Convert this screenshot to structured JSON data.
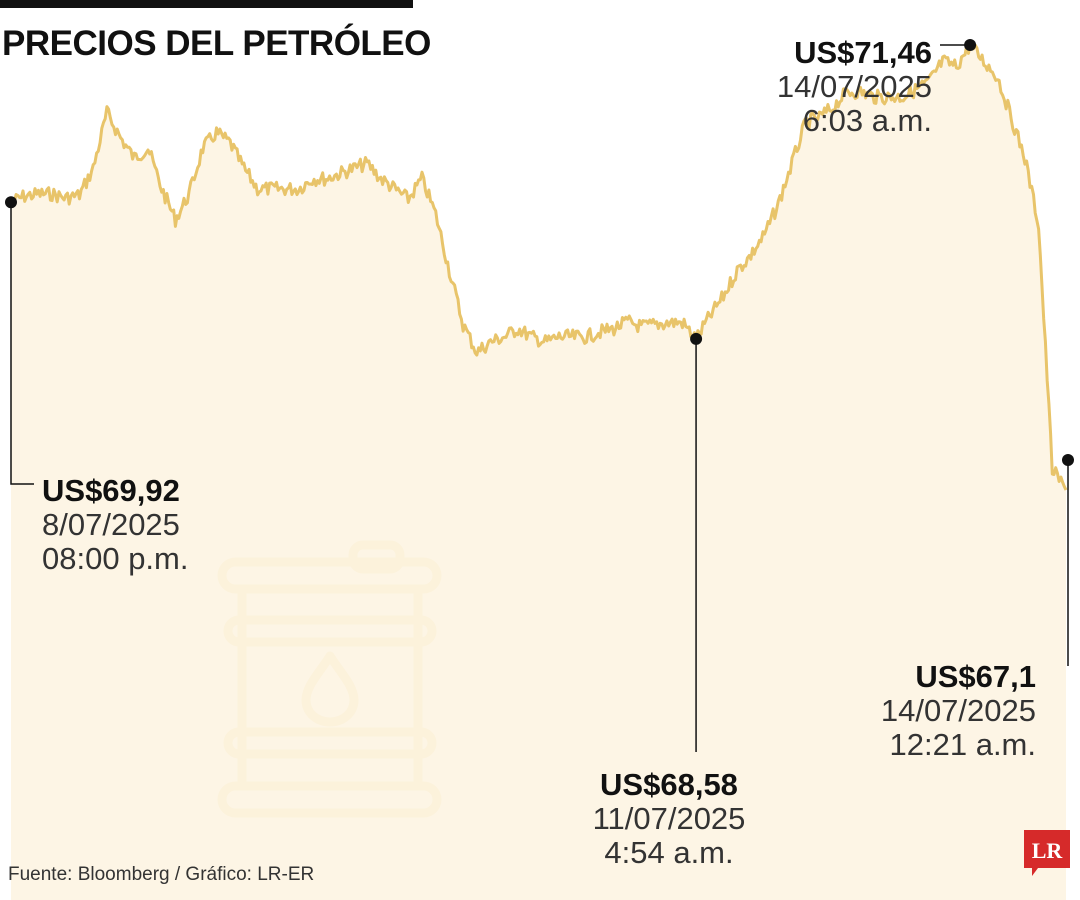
{
  "header": {
    "title": "PRECIOS DEL PETRÓLEO"
  },
  "footer": {
    "source": "Fuente: Bloomberg / Gráfico: LR-ER",
    "logo_text": "LR"
  },
  "colors": {
    "line": "#e8c46a",
    "fill": "#fdf3e0",
    "accent": "#d62a2a",
    "text": "#111111"
  },
  "icons": {
    "background": "oil-barrel-icon"
  },
  "chart_data": {
    "type": "line",
    "unit": "US$",
    "ylim": [
      67.0,
      71.5
    ],
    "annotations": [
      {
        "value": "US$69,92",
        "date": "8/07/2025",
        "time": "08:00 p.m."
      },
      {
        "value": "US$68,58",
        "date": "11/07/2025",
        "time": "4:54 a.m."
      },
      {
        "value": "US$71,46",
        "date": "14/07/2025",
        "time": "6:03 a.m."
      },
      {
        "value": "US$67,1",
        "date": "14/07/2025",
        "time": "12:21 a.m."
      }
    ],
    "series": [
      {
        "values": [
          69.92,
          69.98,
          70.0,
          70.0,
          69.96,
          69.99,
          70.25,
          70.8,
          70.55,
          70.35,
          70.45,
          70.05,
          69.75,
          70.0,
          70.45,
          70.6,
          70.5,
          70.25,
          70.05,
          70.05,
          70.05,
          70.05,
          70.15,
          70.15,
          70.2,
          70.25,
          70.3,
          70.15,
          70.05,
          69.95,
          70.15,
          69.8,
          69.25,
          68.72,
          68.45,
          68.55,
          68.6,
          68.68,
          68.6,
          68.55,
          68.6,
          68.6,
          68.6,
          68.65,
          68.68,
          68.75,
          68.7,
          68.72,
          68.74,
          68.74,
          68.58,
          68.8,
          69.0,
          69.25,
          69.4,
          69.6,
          69.9,
          70.3,
          70.7,
          70.75,
          70.85,
          71.0,
          71.0,
          70.95,
          70.95,
          70.95,
          71.02,
          71.1,
          71.3,
          71.25,
          71.46,
          71.3,
          71.15,
          70.75,
          70.35,
          69.7,
          67.3,
          67.1
        ]
      }
    ]
  }
}
